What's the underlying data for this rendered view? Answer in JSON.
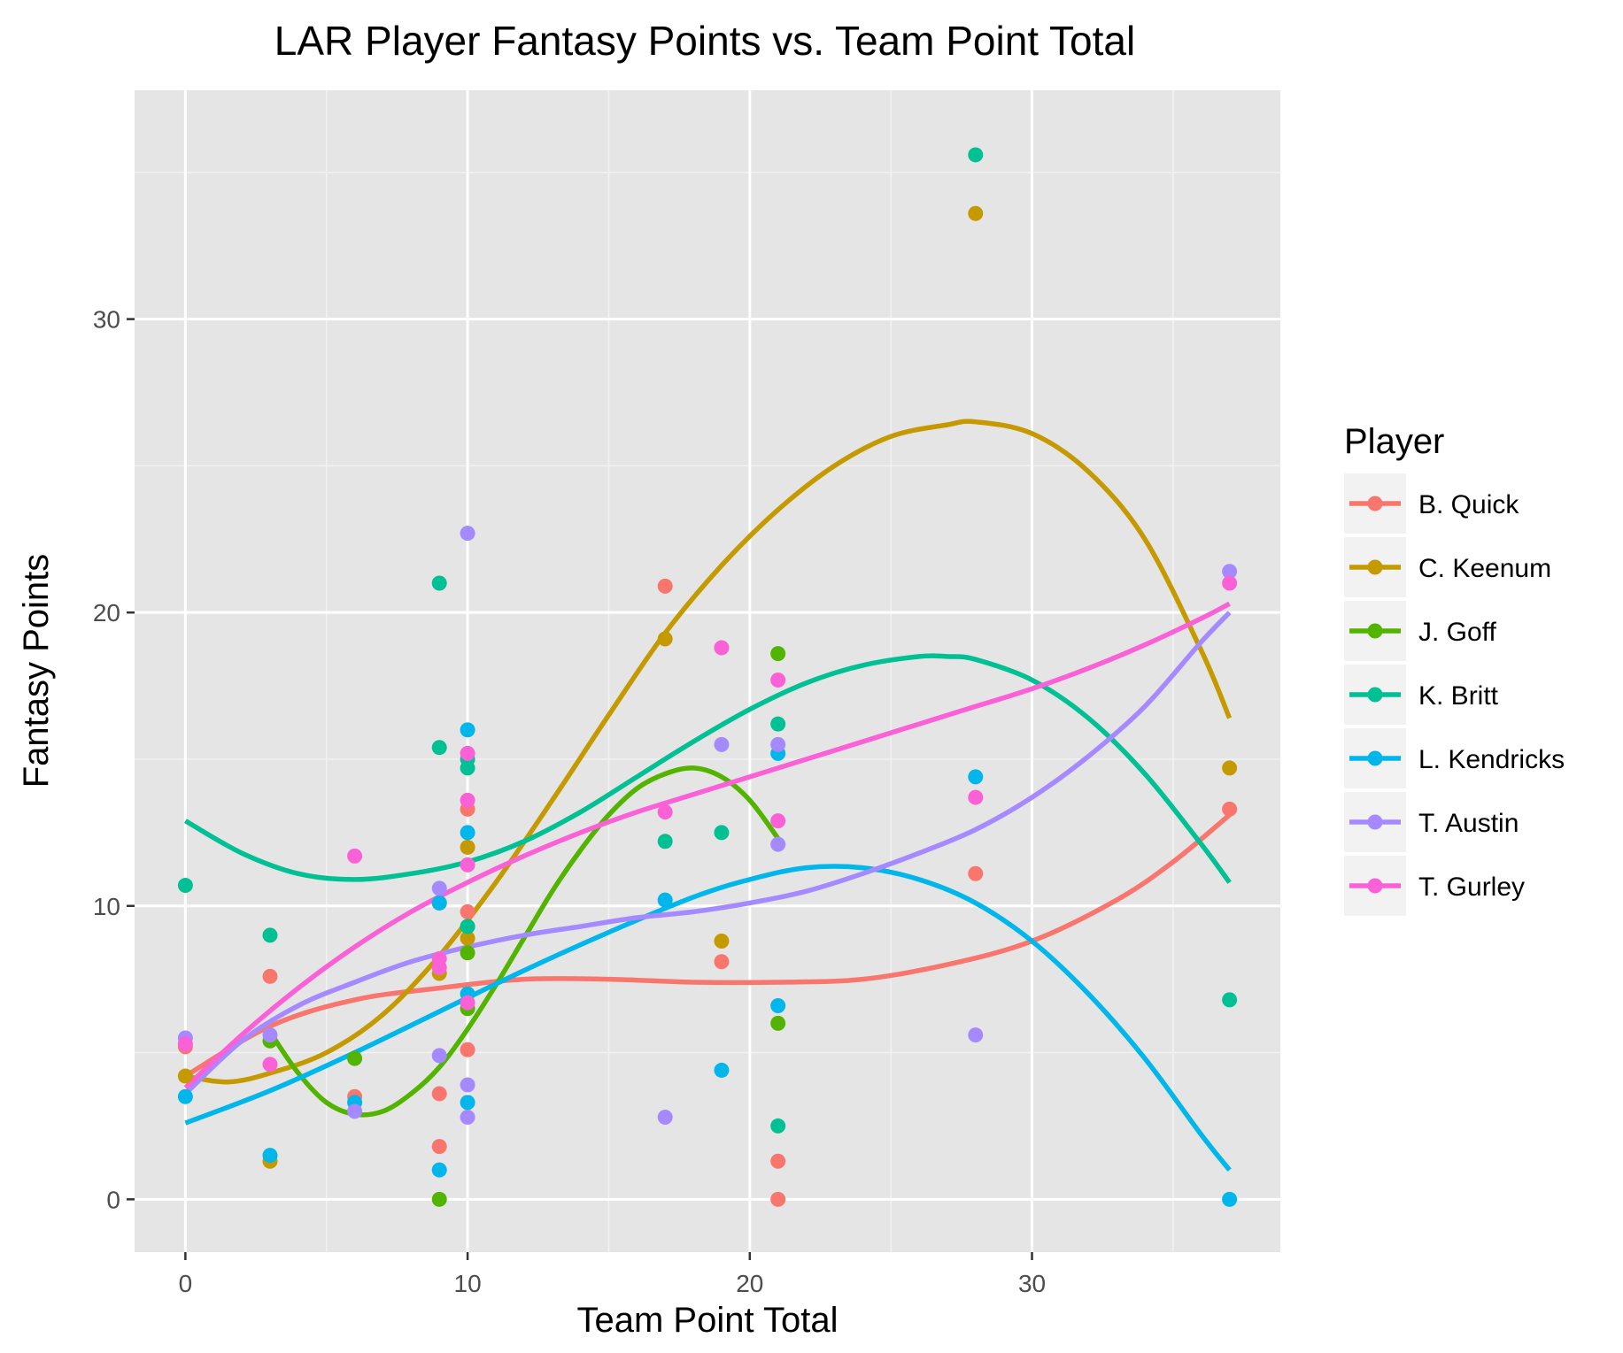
{
  "chart_data": {
    "type": "scatter",
    "title": "LAR Player Fantasy Points vs. Team Point Total",
    "xlabel": "Team Point Total",
    "ylabel": "Fantasy Points",
    "xlim": [
      -1.8,
      38.8
    ],
    "ylim": [
      -1.8,
      37.8
    ],
    "x_ticks": [
      0,
      10,
      20,
      30
    ],
    "y_ticks": [
      0,
      10,
      20,
      30
    ],
    "x_minor_ticks": [
      5,
      15,
      25,
      35
    ],
    "y_minor_ticks": [
      5,
      15,
      25,
      35
    ],
    "background": "#e5e5e5",
    "grid": true,
    "legend": {
      "title": "Player",
      "position": "right"
    },
    "series": [
      {
        "name": "B. Quick",
        "color": "#F8766D",
        "points": [
          [
            0,
            5.2
          ],
          [
            3,
            7.6
          ],
          [
            6,
            3.5
          ],
          [
            9,
            3.6
          ],
          [
            9,
            1.8
          ],
          [
            10,
            5.1
          ],
          [
            10,
            9.8
          ],
          [
            10,
            13.3
          ],
          [
            17,
            20.9
          ],
          [
            19,
            8.1
          ],
          [
            21,
            1.3
          ],
          [
            21,
            0
          ],
          [
            28,
            11.1
          ],
          [
            37,
            13.3
          ]
        ],
        "smooth": [
          [
            0,
            4.2
          ],
          [
            3,
            5.9
          ],
          [
            6,
            6.8
          ],
          [
            9,
            7.2
          ],
          [
            12,
            7.5
          ],
          [
            15,
            7.5
          ],
          [
            18,
            7.4
          ],
          [
            21,
            7.4
          ],
          [
            24,
            7.5
          ],
          [
            27,
            8.0
          ],
          [
            30,
            8.8
          ],
          [
            33,
            10.2
          ],
          [
            35,
            11.5
          ],
          [
            37,
            13.1
          ]
        ]
      },
      {
        "name": "C. Keenum",
        "color": "#C49A00",
        "points": [
          [
            0,
            4.2
          ],
          [
            3,
            1.3
          ],
          [
            9,
            7.7
          ],
          [
            9,
            10.1
          ],
          [
            10,
            8.9
          ],
          [
            10,
            12.0
          ],
          [
            17,
            19.1
          ],
          [
            19,
            8.8
          ],
          [
            28,
            33.6
          ],
          [
            37,
            14.7
          ]
        ],
        "smooth": [
          [
            0,
            4.2
          ],
          [
            1.5,
            4.0
          ],
          [
            3,
            4.3
          ],
          [
            5,
            5.0
          ],
          [
            7,
            6.3
          ],
          [
            9,
            8.3
          ],
          [
            11,
            10.8
          ],
          [
            13,
            13.6
          ],
          [
            15,
            16.5
          ],
          [
            17,
            19.3
          ],
          [
            19,
            21.6
          ],
          [
            21,
            23.5
          ],
          [
            23,
            25.0
          ],
          [
            25,
            26.0
          ],
          [
            27,
            26.4
          ],
          [
            28,
            26.5
          ],
          [
            30,
            26.1
          ],
          [
            32,
            24.8
          ],
          [
            34,
            22.5
          ],
          [
            36,
            18.7
          ],
          [
            37,
            16.4
          ]
        ]
      },
      {
        "name": "J. Goff",
        "color": "#53B400",
        "points": [
          [
            3,
            5.4
          ],
          [
            6,
            4.8
          ],
          [
            9,
            0
          ],
          [
            10,
            6.5
          ],
          [
            10,
            8.4
          ],
          [
            10,
            9.3
          ],
          [
            21,
            18.6
          ],
          [
            21,
            6.0
          ]
        ],
        "smooth": [
          [
            3,
            5.7
          ],
          [
            4,
            4.3
          ],
          [
            5,
            3.3
          ],
          [
            6,
            2.9
          ],
          [
            7,
            3.0
          ],
          [
            8,
            3.6
          ],
          [
            9,
            4.5
          ],
          [
            10,
            5.8
          ],
          [
            11,
            7.3
          ],
          [
            12,
            8.9
          ],
          [
            13,
            10.5
          ],
          [
            14,
            11.9
          ],
          [
            15,
            13.1
          ],
          [
            16,
            14.0
          ],
          [
            17,
            14.5
          ],
          [
            18,
            14.7
          ],
          [
            19,
            14.4
          ],
          [
            20,
            13.6
          ],
          [
            21,
            12.3
          ]
        ]
      },
      {
        "name": "K. Britt",
        "color": "#00C094",
        "points": [
          [
            0,
            10.7
          ],
          [
            3,
            9.0
          ],
          [
            9,
            21.0
          ],
          [
            9,
            15.4
          ],
          [
            10,
            14.7
          ],
          [
            10,
            15.0
          ],
          [
            10,
            9.3
          ],
          [
            17,
            12.2
          ],
          [
            19,
            12.5
          ],
          [
            21,
            16.2
          ],
          [
            21,
            2.5
          ],
          [
            28,
            35.6
          ],
          [
            37,
            6.8
          ]
        ],
        "smooth": [
          [
            0,
            12.9
          ],
          [
            2,
            11.8
          ],
          [
            4,
            11.1
          ],
          [
            6,
            10.9
          ],
          [
            8,
            11.1
          ],
          [
            10,
            11.5
          ],
          [
            12,
            12.2
          ],
          [
            14,
            13.2
          ],
          [
            16,
            14.4
          ],
          [
            18,
            15.6
          ],
          [
            20,
            16.7
          ],
          [
            22,
            17.6
          ],
          [
            24,
            18.2
          ],
          [
            26,
            18.5
          ],
          [
            27,
            18.5
          ],
          [
            28,
            18.4
          ],
          [
            30,
            17.7
          ],
          [
            32,
            16.4
          ],
          [
            34,
            14.5
          ],
          [
            36,
            12.1
          ],
          [
            37,
            10.8
          ]
        ]
      },
      {
        "name": "L. Kendricks",
        "color": "#00B6EB",
        "points": [
          [
            0,
            3.5
          ],
          [
            3,
            1.5
          ],
          [
            6,
            3.3
          ],
          [
            9,
            1.0
          ],
          [
            9,
            10.1
          ],
          [
            10,
            3.3
          ],
          [
            10,
            7.0
          ],
          [
            10,
            12.5
          ],
          [
            10,
            16.0
          ],
          [
            17,
            10.2
          ],
          [
            19,
            4.4
          ],
          [
            21,
            6.6
          ],
          [
            21,
            15.2
          ],
          [
            28,
            14.4
          ],
          [
            37,
            0
          ]
        ],
        "smooth": [
          [
            0,
            2.6
          ],
          [
            3,
            3.7
          ],
          [
            6,
            5.0
          ],
          [
            9,
            6.4
          ],
          [
            12,
            7.8
          ],
          [
            15,
            9.1
          ],
          [
            18,
            10.3
          ],
          [
            20,
            10.9
          ],
          [
            22,
            11.3
          ],
          [
            24,
            11.3
          ],
          [
            26,
            10.9
          ],
          [
            28,
            10.1
          ],
          [
            30,
            8.8
          ],
          [
            32,
            7.0
          ],
          [
            34,
            4.8
          ],
          [
            36,
            2.2
          ],
          [
            37,
            1.0
          ]
        ]
      },
      {
        "name": "T. Austin",
        "color": "#A58AFF",
        "points": [
          [
            0,
            5.5
          ],
          [
            3,
            5.6
          ],
          [
            6,
            3.0
          ],
          [
            9,
            4.9
          ],
          [
            9,
            10.6
          ],
          [
            10,
            2.8
          ],
          [
            10,
            3.9
          ],
          [
            10,
            22.7
          ],
          [
            17,
            2.8
          ],
          [
            19,
            15.5
          ],
          [
            21,
            15.5
          ],
          [
            21,
            12.1
          ],
          [
            28,
            5.6
          ],
          [
            37,
            21.4
          ]
        ],
        "smooth": [
          [
            0,
            3.6
          ],
          [
            2,
            5.4
          ],
          [
            4,
            6.6
          ],
          [
            6,
            7.4
          ],
          [
            8,
            8.1
          ],
          [
            10,
            8.6
          ],
          [
            12,
            9.0
          ],
          [
            14,
            9.3
          ],
          [
            16,
            9.6
          ],
          [
            18,
            9.8
          ],
          [
            20,
            10.1
          ],
          [
            22,
            10.5
          ],
          [
            24,
            11.1
          ],
          [
            26,
            11.8
          ],
          [
            28,
            12.6
          ],
          [
            30,
            13.7
          ],
          [
            32,
            15.1
          ],
          [
            34,
            16.8
          ],
          [
            36,
            19.0
          ],
          [
            37,
            20.0
          ]
        ]
      },
      {
        "name": "T. Gurley",
        "color": "#FB61D7",
        "points": [
          [
            0,
            5.3
          ],
          [
            3,
            4.6
          ],
          [
            6,
            11.7
          ],
          [
            9,
            7.9
          ],
          [
            9,
            8.2
          ],
          [
            10,
            6.7
          ],
          [
            10,
            11.4
          ],
          [
            10,
            13.6
          ],
          [
            10,
            15.2
          ],
          [
            17,
            13.2
          ],
          [
            19,
            18.8
          ],
          [
            21,
            17.7
          ],
          [
            21,
            12.9
          ],
          [
            28,
            13.7
          ],
          [
            37,
            21.0
          ]
        ],
        "smooth": [
          [
            0,
            3.8
          ],
          [
            2,
            5.6
          ],
          [
            4,
            7.2
          ],
          [
            6,
            8.6
          ],
          [
            8,
            9.8
          ],
          [
            10,
            10.8
          ],
          [
            12,
            11.7
          ],
          [
            14,
            12.5
          ],
          [
            16,
            13.2
          ],
          [
            18,
            13.8
          ],
          [
            20,
            14.4
          ],
          [
            22,
            15.0
          ],
          [
            24,
            15.6
          ],
          [
            26,
            16.2
          ],
          [
            28,
            16.8
          ],
          [
            30,
            17.4
          ],
          [
            32,
            18.1
          ],
          [
            34,
            18.9
          ],
          [
            36,
            19.8
          ],
          [
            37,
            20.3
          ]
        ]
      }
    ]
  }
}
